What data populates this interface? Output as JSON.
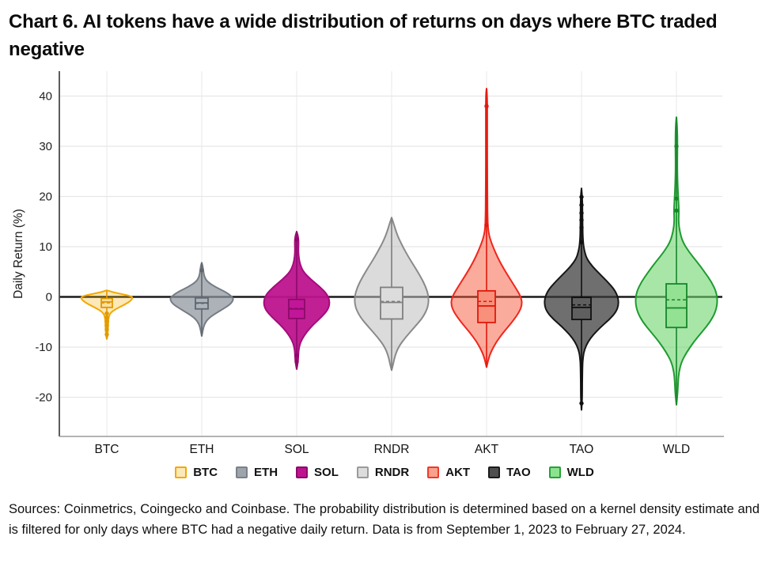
{
  "title": "Chart 6. AI tokens have a wide distribution of returns on days where BTC traded negative",
  "source_note": "Sources: Coinmetrics, Coingecko and Coinbase. The probability distribution is determined based on a kernel density estimate and is filtered for only days where BTC had a negative daily return. Data is from September 1, 2023 to February 27, 2024.",
  "chart_data": {
    "type": "violin",
    "title": "Chart 6. AI tokens have a wide distribution of returns on days where BTC traded negative",
    "xlabel": "",
    "ylabel": "Daily Return (%)",
    "yticks": [
      40,
      30,
      20,
      10,
      0,
      -10,
      -20
    ],
    "ylim": [
      -27,
      45
    ],
    "grid": true,
    "zero_line": true,
    "legend_position": "bottom",
    "categories": [
      "BTC",
      "ETH",
      "SOL",
      "RNDR",
      "AKT",
      "TAO",
      "WLD"
    ],
    "series": [
      {
        "name": "BTC",
        "stroke": "#F2A900",
        "fill": "rgba(244,178,22,0.30)",
        "legend_fill": "#FCE9BB",
        "legend_border": "#F2A900",
        "box_fill": "#FBDF9E",
        "box_stroke": "#E09A00",
        "max_halfwidth": 33,
        "box_halfwidth": 7,
        "stem": [
          1.3,
          -8.4
        ],
        "box": {
          "q3": -0.3,
          "q1": -2.1,
          "median": -1.0,
          "mean": -1.2
        },
        "points": [
          -3.3,
          -4.1,
          -4.9,
          -5.7,
          -6.5,
          -7.5
        ],
        "profile": [
          [
            1.3,
            0
          ],
          [
            0.9,
            0.25
          ],
          [
            0.4,
            0.72
          ],
          [
            0.0,
            1.0
          ],
          [
            -0.6,
            0.95
          ],
          [
            -1.2,
            0.8
          ],
          [
            -2.0,
            0.5
          ],
          [
            -2.8,
            0.22
          ],
          [
            -3.5,
            0.1
          ],
          [
            -4.5,
            0.06
          ],
          [
            -6.0,
            0.05
          ],
          [
            -7.0,
            0.04
          ],
          [
            -8.0,
            0.02
          ],
          [
            -8.4,
            0
          ]
        ]
      },
      {
        "name": "ETH",
        "stroke": "#757C85",
        "fill": "rgba(141,148,156,0.72)",
        "legend_fill": "#9EA4AB",
        "legend_border": "#7A8189",
        "box_fill": "#AEB4BB",
        "box_stroke": "#5F666E",
        "max_halfwidth": 40,
        "box_halfwidth": 8,
        "stem": [
          6.8,
          -7.8
        ],
        "box": {
          "q3": -0.2,
          "q1": -2.4,
          "median": -1.2,
          "mean": -1.3
        },
        "points": [
          5.3
        ],
        "profile": [
          [
            6.8,
            0
          ],
          [
            6.2,
            0.03
          ],
          [
            5.2,
            0.05
          ],
          [
            4.0,
            0.08
          ],
          [
            3.0,
            0.18
          ],
          [
            2.0,
            0.42
          ],
          [
            1.0,
            0.75
          ],
          [
            0.0,
            0.97
          ],
          [
            -0.6,
            1.0
          ],
          [
            -1.5,
            0.9
          ],
          [
            -2.5,
            0.65
          ],
          [
            -3.5,
            0.38
          ],
          [
            -4.5,
            0.18
          ],
          [
            -5.5,
            0.08
          ],
          [
            -6.5,
            0.04
          ],
          [
            -7.8,
            0
          ]
        ]
      },
      {
        "name": "SOL",
        "stroke": "#A50B7C",
        "fill": "rgba(190,19,142,0.95)",
        "legend_fill": "#BE138E",
        "legend_border": "#8C0A69",
        "box_fill": "#C2169A",
        "box_stroke": "#8C0A69",
        "max_halfwidth": 42,
        "box_halfwidth": 10,
        "stem": [
          13.0,
          -14.4
        ],
        "box": {
          "q3": -0.5,
          "q1": -4.3,
          "median": -2.4,
          "mean": -2.3
        },
        "points": [
          11.4,
          -11.6,
          -12.9
        ],
        "profile": [
          [
            13.0,
            0
          ],
          [
            12.2,
            0.04
          ],
          [
            11.0,
            0.06
          ],
          [
            9.5,
            0.05
          ],
          [
            8.0,
            0.06
          ],
          [
            6.5,
            0.1
          ],
          [
            5.0,
            0.2
          ],
          [
            3.5,
            0.42
          ],
          [
            2.0,
            0.7
          ],
          [
            0.5,
            0.92
          ],
          [
            -1.0,
            1.0
          ],
          [
            -2.5,
            0.95
          ],
          [
            -4.0,
            0.75
          ],
          [
            -5.5,
            0.5
          ],
          [
            -7.0,
            0.3
          ],
          [
            -8.5,
            0.15
          ],
          [
            -10.0,
            0.07
          ],
          [
            -11.5,
            0.05
          ],
          [
            -13.0,
            0.04
          ],
          [
            -14.4,
            0
          ]
        ]
      },
      {
        "name": "RNDR",
        "stroke": "#8A8A8A",
        "fill": "rgba(190,190,190,0.55)",
        "legend_fill": "#DCDCDC",
        "legend_border": "#9A9A9A",
        "box_fill": "#DCDCDC",
        "box_stroke": "#7F7F7F",
        "max_halfwidth": 47,
        "box_halfwidth": 14,
        "stem": [
          15.8,
          -14.6
        ],
        "box": {
          "q3": 1.9,
          "q1": -4.4,
          "median": -1.1,
          "mean": -0.9
        },
        "points": [],
        "profile": [
          [
            15.8,
            0
          ],
          [
            14.5,
            0.06
          ],
          [
            13.0,
            0.12
          ],
          [
            11.5,
            0.2
          ],
          [
            10.0,
            0.3
          ],
          [
            8.0,
            0.45
          ],
          [
            6.0,
            0.62
          ],
          [
            4.0,
            0.78
          ],
          [
            2.0,
            0.92
          ],
          [
            0.0,
            1.0
          ],
          [
            -2.0,
            0.98
          ],
          [
            -4.0,
            0.85
          ],
          [
            -6.0,
            0.62
          ],
          [
            -8.0,
            0.38
          ],
          [
            -10.0,
            0.18
          ],
          [
            -12.0,
            0.08
          ],
          [
            -13.5,
            0.04
          ],
          [
            -14.6,
            0
          ]
        ]
      },
      {
        "name": "AKT",
        "stroke": "#F0261B",
        "fill": "rgba(246,88,58,0.50)",
        "legend_fill": "#F9A18C",
        "legend_border": "#F0392B",
        "box_fill": "#F8907B",
        "box_stroke": "#E3180C",
        "max_halfwidth": 45,
        "box_halfwidth": 11,
        "stem": [
          41.5,
          -14.0
        ],
        "box": {
          "q3": 1.2,
          "q1": -5.1,
          "median": -1.8,
          "mean": -0.9
        },
        "points": [
          38.0,
          14.3
        ],
        "profile": [
          [
            41.5,
            0
          ],
          [
            40,
            0.02
          ],
          [
            35,
            0.02
          ],
          [
            30,
            0.02
          ],
          [
            25,
            0.02
          ],
          [
            20,
            0.025
          ],
          [
            15,
            0.03
          ],
          [
            13,
            0.05
          ],
          [
            11.5,
            0.1
          ],
          [
            10,
            0.18
          ],
          [
            8,
            0.3
          ],
          [
            6,
            0.45
          ],
          [
            4,
            0.62
          ],
          [
            2,
            0.8
          ],
          [
            0,
            0.97
          ],
          [
            -1.5,
            1.0
          ],
          [
            -3,
            0.92
          ],
          [
            -5,
            0.72
          ],
          [
            -7,
            0.48
          ],
          [
            -9,
            0.27
          ],
          [
            -11,
            0.12
          ],
          [
            -12.5,
            0.05
          ],
          [
            -14.0,
            0
          ]
        ]
      },
      {
        "name": "TAO",
        "stroke": "#151515",
        "fill": "rgba(55,55,55,0.72)",
        "legend_fill": "#4F4F4F",
        "legend_border": "#1B1B1B",
        "box_fill": "#5F5F5F",
        "box_stroke": "#101010",
        "max_halfwidth": 47,
        "box_halfwidth": 12,
        "stem": [
          21.6,
          -22.5
        ],
        "box": {
          "q3": -0.1,
          "q1": -4.5,
          "median": -2.1,
          "mean": -1.6
        },
        "points": [
          19.9,
          18.3,
          16.7,
          15.3,
          13.8,
          10.9,
          -21.2
        ],
        "profile": [
          [
            21.6,
            0
          ],
          [
            20,
            0.02
          ],
          [
            17,
            0.025
          ],
          [
            14,
            0.03
          ],
          [
            11,
            0.04
          ],
          [
            9,
            0.08
          ],
          [
            7.5,
            0.15
          ],
          [
            6,
            0.3
          ],
          [
            4.5,
            0.5
          ],
          [
            3,
            0.7
          ],
          [
            1.5,
            0.88
          ],
          [
            0,
            0.98
          ],
          [
            -1.5,
            1.0
          ],
          [
            -3,
            0.93
          ],
          [
            -4.5,
            0.75
          ],
          [
            -6,
            0.52
          ],
          [
            -7.5,
            0.32
          ],
          [
            -9,
            0.17
          ],
          [
            -10.5,
            0.08
          ],
          [
            -12,
            0.04
          ],
          [
            -14,
            0.025
          ],
          [
            -17,
            0.02
          ],
          [
            -20,
            0.02
          ],
          [
            -22.5,
            0
          ]
        ]
      },
      {
        "name": "WLD",
        "stroke": "#1F9B30",
        "fill": "rgba(110,214,110,0.60)",
        "legend_fill": "#8BE38F",
        "legend_border": "#27A138",
        "box_fill": "#93E193",
        "box_stroke": "#17862B",
        "max_halfwidth": 52,
        "box_halfwidth": 13,
        "stem": [
          35.8,
          -21.5
        ],
        "box": {
          "q3": 2.6,
          "q1": -6.1,
          "median": -2.2,
          "mean": -0.6
        },
        "points": [
          30.0,
          19.6,
          17.2
        ],
        "profile": [
          [
            35.8,
            0
          ],
          [
            34,
            0.02
          ],
          [
            30,
            0.025
          ],
          [
            26,
            0.02
          ],
          [
            22,
            0.03
          ],
          [
            19,
            0.05
          ],
          [
            17,
            0.06
          ],
          [
            15,
            0.05
          ],
          [
            13,
            0.08
          ],
          [
            11,
            0.15
          ],
          [
            9,
            0.3
          ],
          [
            7,
            0.5
          ],
          [
            5,
            0.68
          ],
          [
            3,
            0.85
          ],
          [
            1,
            0.97
          ],
          [
            -1,
            1.0
          ],
          [
            -3,
            0.95
          ],
          [
            -5,
            0.82
          ],
          [
            -7,
            0.62
          ],
          [
            -9,
            0.42
          ],
          [
            -11,
            0.25
          ],
          [
            -13,
            0.12
          ],
          [
            -15,
            0.06
          ],
          [
            -17,
            0.04
          ],
          [
            -19,
            0.03
          ],
          [
            -21.5,
            0
          ]
        ]
      }
    ]
  }
}
